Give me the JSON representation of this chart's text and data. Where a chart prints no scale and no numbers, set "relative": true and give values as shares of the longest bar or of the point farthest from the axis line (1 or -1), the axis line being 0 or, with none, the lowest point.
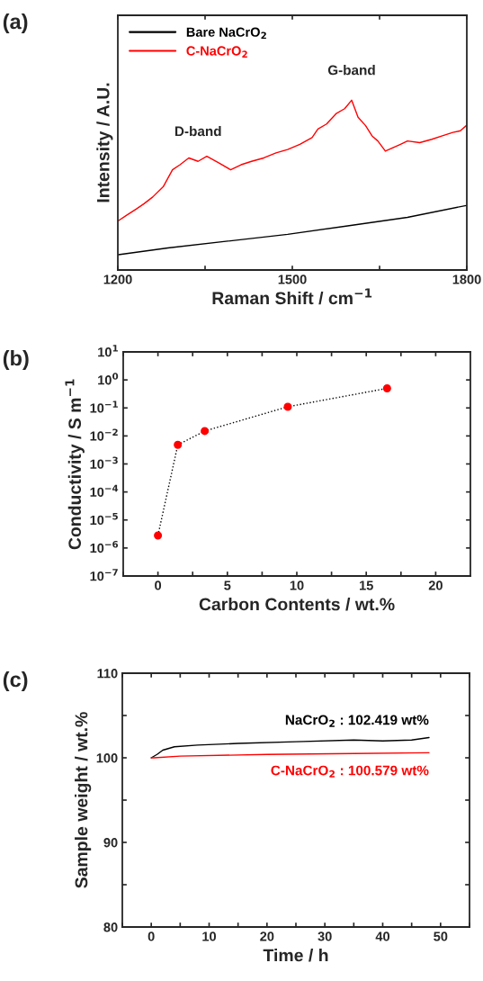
{
  "chart_data": [
    {
      "type": "line",
      "title": "(a)",
      "xlabel": "Raman Shift / cm$^{−1}$",
      "ylabel": "Intensity / A.U.",
      "relative": true,
      "xlim": [
        1200,
        1800
      ],
      "xticks": [
        1200,
        {
          "value": 1350,
          "label": null
        },
        1500,
        {
          "value": 1650,
          "label": null
        },
        1800
      ],
      "legend": "top left",
      "tick_labels": "x",
      "annotations": [
        {
          "text": "D-band",
          "x": 1338,
          "y": 0.64
        },
        {
          "text": "G-band",
          "x": 1602,
          "y": 1.0
        }
      ],
      "series": [
        {
          "name": "Bare NaCrO$_{2}$",
          "color": "#000000",
          "x": [
            1201,
            1286,
            1389,
            1492,
            1595,
            1698,
            1799
          ],
          "values": [
            0.09,
            0.13,
            0.17,
            0.21,
            0.26,
            0.31,
            0.38
          ]
        },
        {
          "name": "C-NaCrO$_{2}$",
          "color": "#ff0000",
          "x": [
            1201,
            1214,
            1232,
            1245,
            1260,
            1278,
            1294,
            1307,
            1322,
            1338,
            1353,
            1374,
            1394,
            1412,
            1430,
            1451,
            1472,
            1492,
            1513,
            1534,
            1544,
            1559,
            1575,
            1590,
            1602,
            1613,
            1626,
            1637,
            1647,
            1660,
            1673,
            1686,
            1698,
            1719,
            1740,
            1758,
            1776,
            1789,
            1799
          ],
          "values": [
            0.29,
            0.32,
            0.36,
            0.39,
            0.43,
            0.49,
            0.59,
            0.62,
            0.66,
            0.64,
            0.67,
            0.63,
            0.59,
            0.62,
            0.64,
            0.66,
            0.69,
            0.71,
            0.74,
            0.78,
            0.83,
            0.86,
            0.92,
            0.95,
            1.0,
            0.9,
            0.85,
            0.79,
            0.76,
            0.7,
            0.72,
            0.74,
            0.76,
            0.75,
            0.77,
            0.79,
            0.81,
            0.82,
            0.85
          ]
        }
      ]
    },
    {
      "type": "line",
      "title": "(b)",
      "xlabel": "Carbon Contents / wt.%",
      "ylabel": "Conductivity / S m$^{−1}$",
      "log": "y",
      "xlim": [
        -2.5,
        22.5
      ],
      "xticks": [
        {
          "value": -2.5,
          "label": null
        },
        0,
        {
          "value": 2.5,
          "label": null
        },
        5,
        {
          "value": 7.5,
          "label": null
        },
        10,
        {
          "value": 12.5,
          "label": null
        },
        15,
        {
          "value": 17.5,
          "label": null
        },
        20
      ],
      "ylim": [
        1e-07,
        10
      ],
      "yticks": [
        {
          "value": 1e-07,
          "label": "10$^{−7}$"
        },
        {
          "value": 1e-06,
          "label": "10$^{−6}$"
        },
        {
          "value": 1e-05,
          "label": "10$^{−5}$"
        },
        {
          "value": 0.0001,
          "label": "10$^{−4}$"
        },
        {
          "value": 0.001,
          "label": "10$^{−3}$"
        },
        {
          "value": 0.01,
          "label": "10$^{−2}$"
        },
        {
          "value": 0.1,
          "label": "10$^{−1}$"
        },
        {
          "value": 1,
          "label": "10$^{0}$"
        },
        {
          "value": 10,
          "label": "10$^{1}$"
        }
      ],
      "line_style": "dotted",
      "marker": "circle",
      "legend": false,
      "series": [
        {
          "type": "line",
          "color": "#000000",
          "colors": [
            "#ff0000",
            "#ff0000",
            "#ff0000",
            "#ff0000",
            "#ff0000"
          ],
          "x": [
            0,
            1.43,
            3.37,
            9.35,
            16.5
          ],
          "values": [
            2.8e-06,
            0.0048,
            0.015,
            0.11,
            0.5
          ]
        }
      ]
    },
    {
      "type": "line",
      "title": "(c)",
      "xlabel": "Time / h",
      "ylabel": "Sample weight / wt.%",
      "xlim": [
        -5,
        55
      ],
      "xticks": [
        {
          "value": -5,
          "label": null
        },
        0,
        {
          "value": 5,
          "label": null
        },
        10,
        {
          "value": 15,
          "label": null
        },
        20,
        {
          "value": 25,
          "label": null
        },
        30,
        {
          "value": 35,
          "label": null
        },
        40,
        {
          "value": 45,
          "label": null
        },
        50,
        {
          "value": 55,
          "label": null
        }
      ],
      "ylim": [
        80,
        110
      ],
      "yticks": [
        80,
        {
          "value": 85,
          "label": null
        },
        90,
        {
          "value": 95,
          "label": null
        },
        100,
        {
          "value": 105,
          "label": null
        },
        110
      ],
      "legend": false,
      "series": [
        {
          "name": "NaCrO$_{2}$ : 102.419 wt%",
          "color": "#000000",
          "x": [
            0,
            1,
            2,
            4,
            8,
            15,
            25,
            35,
            40,
            45,
            48
          ],
          "values": [
            100,
            100.4,
            100.9,
            101.3,
            101.5,
            101.7,
            101.9,
            102.1,
            102.0,
            102.1,
            102.4
          ]
        },
        {
          "name": "C-NaCrO$_{2}$ : 100.579 wt%",
          "color": "#ff0000",
          "x": [
            0,
            0.5,
            5,
            20,
            35,
            48
          ],
          "values": [
            100,
            100,
            100.2,
            100.4,
            100.5,
            100.6
          ]
        }
      ]
    }
  ]
}
